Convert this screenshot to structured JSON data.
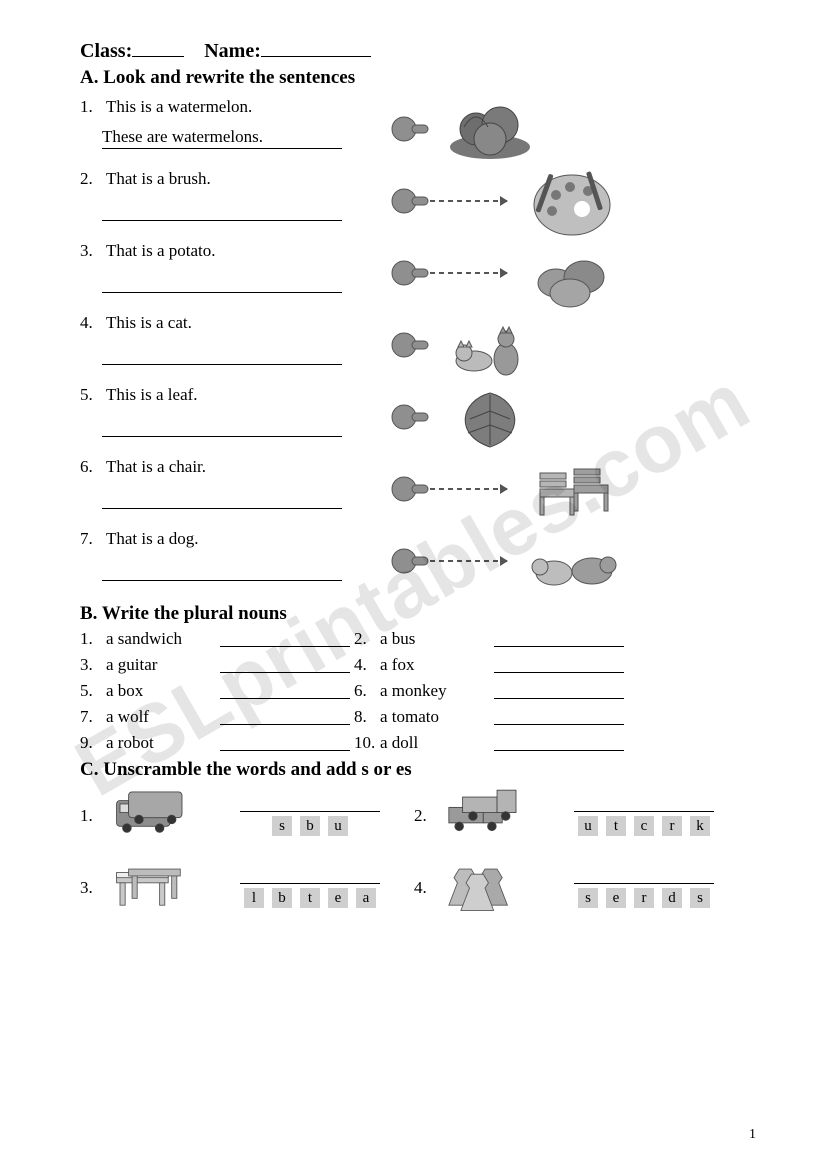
{
  "watermark": "ESLprintables.com",
  "header": {
    "class_label": "Class:",
    "name_label": "Name:"
  },
  "sectionA": {
    "title": "A. Look and rewrite the sentences",
    "items": [
      {
        "n": "1.",
        "prompt": "This is a watermelon.",
        "answer": "These are watermelons.",
        "pointer": "near",
        "icon": "watermelons"
      },
      {
        "n": "2.",
        "prompt": "That is a brush.",
        "answer": "",
        "pointer": "far",
        "icon": "palette"
      },
      {
        "n": "3.",
        "prompt": "That is a potato.",
        "answer": "",
        "pointer": "far",
        "icon": "potatoes"
      },
      {
        "n": "4.",
        "prompt": "This is a cat.",
        "answer": "",
        "pointer": "near",
        "icon": "cats"
      },
      {
        "n": "5.",
        "prompt": "This is a leaf.",
        "answer": "",
        "pointer": "near",
        "icon": "leaves"
      },
      {
        "n": "6.",
        "prompt": "That is a chair.",
        "answer": "",
        "pointer": "far",
        "icon": "chairs"
      },
      {
        "n": "7.",
        "prompt": "That is a dog.",
        "answer": "",
        "pointer": "far",
        "icon": "dogs"
      }
    ]
  },
  "sectionB": {
    "title": "B. Write the plural nouns",
    "pairs": [
      {
        "ln": "1.",
        "l": "a sandwich",
        "rn": "2.",
        "r": "a bus"
      },
      {
        "ln": "3.",
        "l": "a guitar",
        "rn": "4.",
        "r": "a fox"
      },
      {
        "ln": "5.",
        "l": "a box",
        "rn": "6.",
        "r": "a monkey"
      },
      {
        "ln": "7.",
        "l": "a wolf",
        "rn": "8.",
        "r": "a tomato"
      },
      {
        "ln": "9.",
        "l": "a robot",
        "rn": "10.",
        "r": "a doll"
      }
    ]
  },
  "sectionC": {
    "title": "C. Unscramble the words and add s or es",
    "items": [
      {
        "n": "1.",
        "icon": "buses",
        "letters": [
          "s",
          "b",
          "u"
        ]
      },
      {
        "n": "2.",
        "icon": "trucks",
        "letters": [
          "u",
          "t",
          "c",
          "r",
          "k"
        ]
      },
      {
        "n": "3.",
        "icon": "tables",
        "letters": [
          "l",
          "b",
          "t",
          "e",
          "a"
        ]
      },
      {
        "n": "4.",
        "icon": "dresses",
        "letters": [
          "s",
          "e",
          "r",
          "d",
          "s"
        ]
      }
    ]
  },
  "page_number": "1",
  "colors": {
    "tile_bg": "#cfcfcf",
    "watermark": "rgba(0,0,0,0.10)",
    "ink": "#000000",
    "gray_fill": "#8f8f8f",
    "light_fill": "#bcbcbc"
  }
}
